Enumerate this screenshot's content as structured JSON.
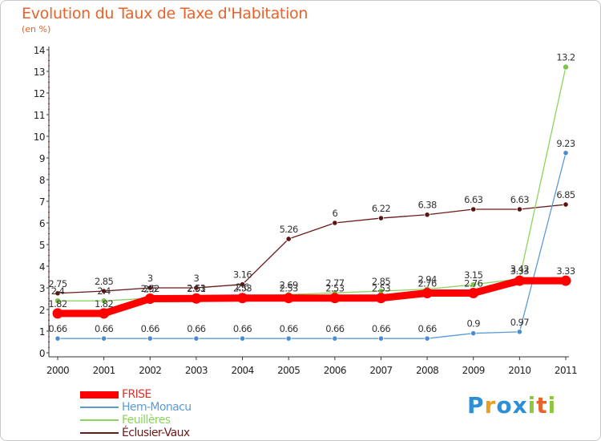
{
  "header": {
    "title": "Evolution du Taux de Taxe d'Habitation",
    "unit": "(en %)"
  },
  "brand": {
    "letters": [
      "P",
      "r",
      "o",
      "x",
      "i",
      "t",
      "i"
    ],
    "colors": [
      "#2d8fd6",
      "#e8a021",
      "#2d8fd6",
      "#2d8fd6",
      "#8dc63f",
      "#e8622a",
      "#8dc63f"
    ]
  },
  "chart_data": {
    "type": "line",
    "x": [
      2000,
      2001,
      2002,
      2003,
      2004,
      2005,
      2006,
      2007,
      2008,
      2009,
      2010,
      2011
    ],
    "ylim": [
      0,
      14
    ],
    "yticks": [
      0,
      1,
      2,
      3,
      4,
      5,
      6,
      7,
      8,
      9,
      10,
      11,
      12,
      13,
      14
    ],
    "grid": false,
    "legend_position": "bottom-left",
    "series": [
      {
        "name": "FRISE",
        "color": "#ff0000",
        "values": [
          1.82,
          1.82,
          2.5,
          2.51,
          2.53,
          2.53,
          2.53,
          2.53,
          2.76,
          2.76,
          3.33,
          3.33
        ],
        "labels": [
          "1.82",
          "1.82",
          "2.5",
          "2.51",
          "2.53",
          "2.53",
          "2.53",
          "2.53",
          "2.76",
          "2.76",
          "3.33",
          "3.33"
        ]
      },
      {
        "name": "Hem-Monacu",
        "color": "#5b9bd5",
        "values": [
          0.66,
          0.66,
          0.66,
          0.66,
          0.66,
          0.66,
          0.66,
          0.66,
          0.66,
          0.9,
          0.97,
          9.23
        ],
        "labels": [
          "0.66",
          "0.66",
          "0.66",
          "0.66",
          "0.66",
          "0.66",
          "0.66",
          "0.66",
          "0.66",
          "0.9",
          "0.97",
          "9.23"
        ]
      },
      {
        "name": "Feuillères",
        "color": "#8dd35f",
        "values": [
          2.4,
          2.4,
          2.52,
          2.53,
          2.6,
          2.69,
          2.77,
          2.85,
          2.94,
          3.15,
          3.42,
          13.2
        ],
        "labels": [
          "2.4",
          "2.4",
          "2.52",
          "2.53",
          "2.6",
          "2.69",
          "2.77",
          "2.85",
          "2.94",
          "3.15",
          "3.42",
          "13.2"
        ]
      },
      {
        "name": "Éclusier-Vaux",
        "color": "#6b1a1a",
        "values": [
          2.75,
          2.85,
          3.0,
          3.0,
          3.16,
          5.26,
          6.0,
          6.22,
          6.38,
          6.63,
          6.63,
          6.85
        ],
        "labels": [
          "2.75",
          "2.85",
          "3",
          "3",
          "3.16",
          "5.26",
          "6",
          "6.22",
          "6.38",
          "6.63",
          "6.63",
          "6.85"
        ]
      }
    ]
  }
}
